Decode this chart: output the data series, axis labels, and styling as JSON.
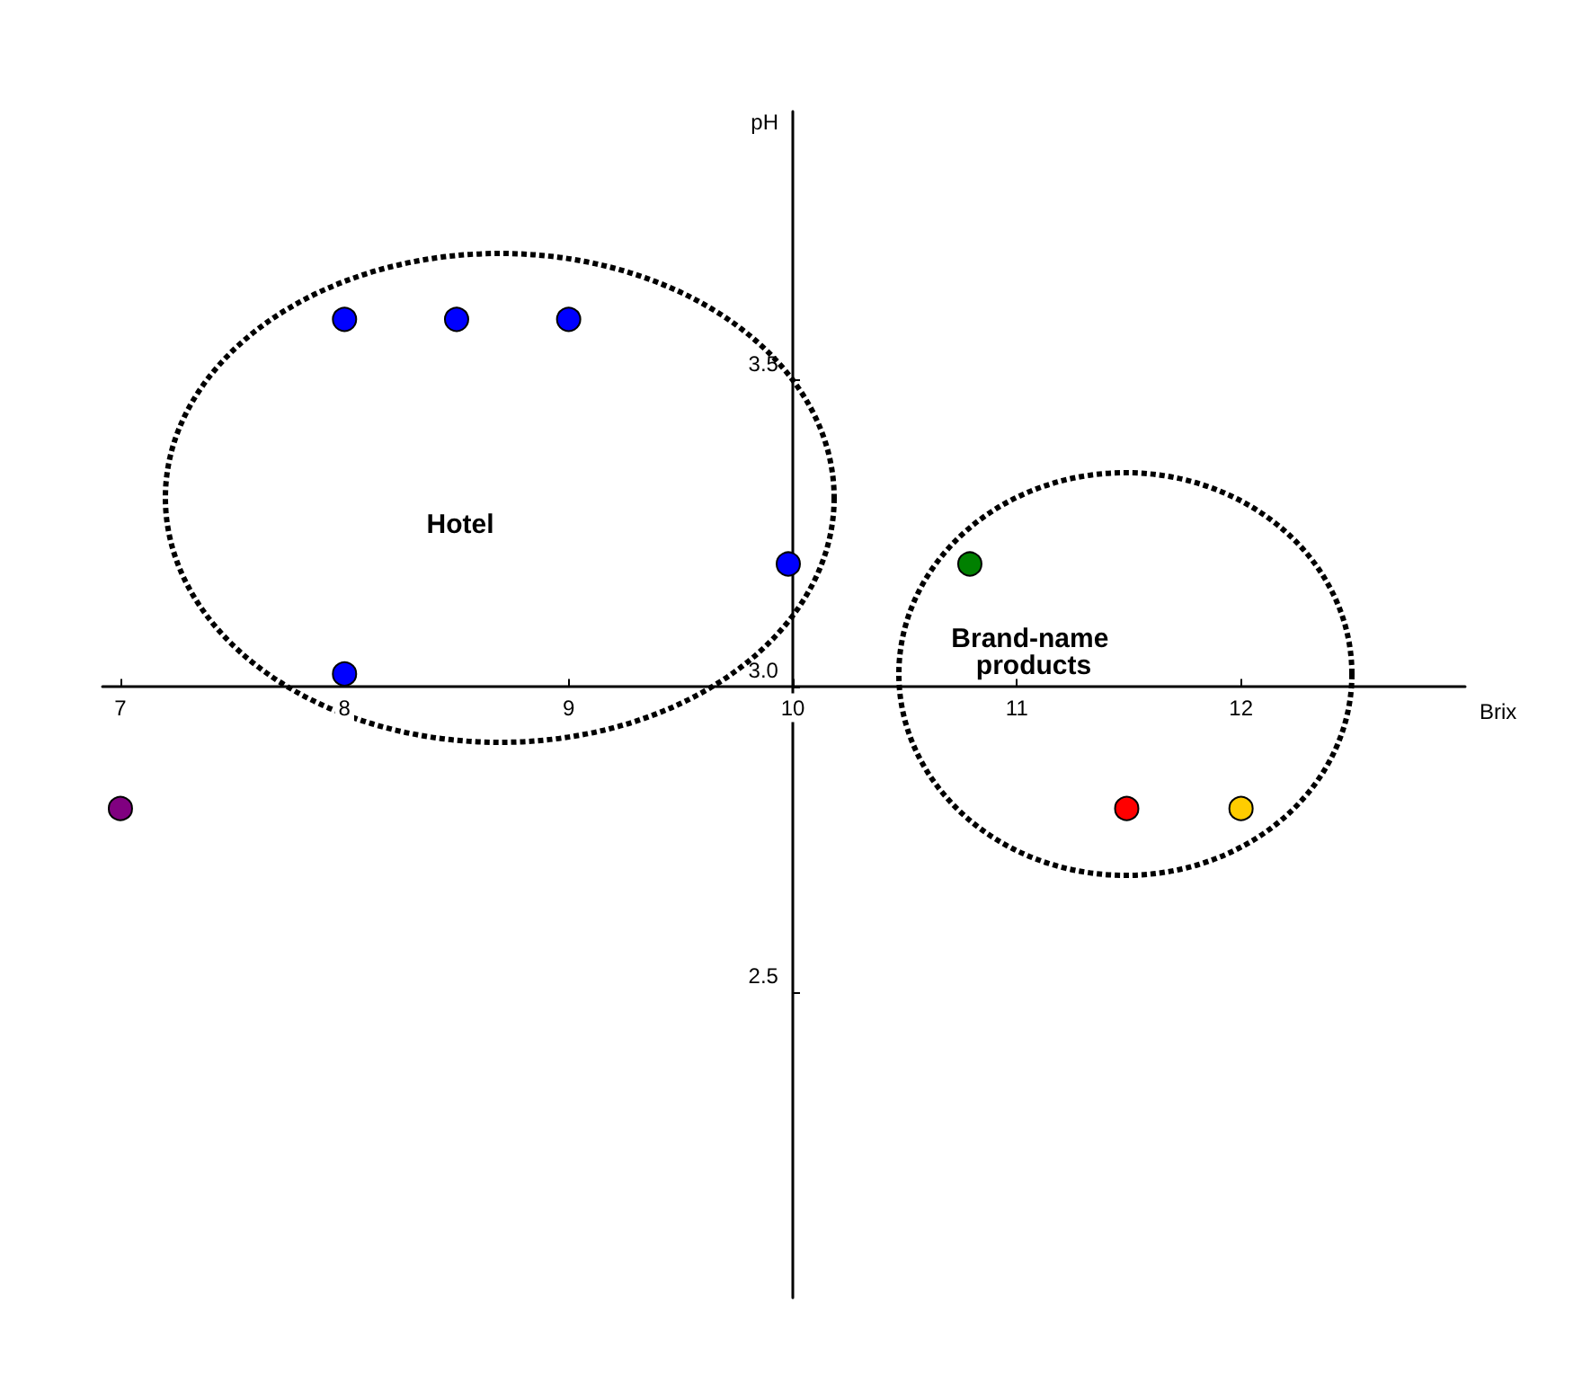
{
  "chart_data": {
    "type": "scatter",
    "xlabel": "Brix",
    "ylabel": "pH",
    "xlim": [
      6.92,
      13.0
    ],
    "ylim": [
      2.0,
      3.94
    ],
    "xticks": [
      7,
      8,
      9,
      10,
      11,
      12
    ],
    "yticks": [
      2.5,
      {
        "value": 3,
        "label": "3.0"
      },
      3.5
    ],
    "marker": "circle",
    "series": [
      {
        "color": "#0000ff",
        "x": [
          8,
          8.5,
          9,
          9.98,
          8
        ],
        "values": [
          3.6,
          3.6,
          3.6,
          3.2,
          3.02
        ]
      },
      {
        "color": "#800080",
        "x": [
          7
        ],
        "values": [
          2.8
        ]
      },
      {
        "color": "#008000",
        "x": [
          10.79
        ],
        "values": [
          3.2
        ]
      },
      {
        "color": "#ff0000",
        "x": [
          11.49
        ],
        "values": [
          2.8
        ]
      },
      {
        "color": "#ffcc00",
        "x": [
          12
        ],
        "values": [
          2.8
        ]
      }
    ],
    "annotations": [
      "Hotel",
      "Brand-name products"
    ]
  }
}
